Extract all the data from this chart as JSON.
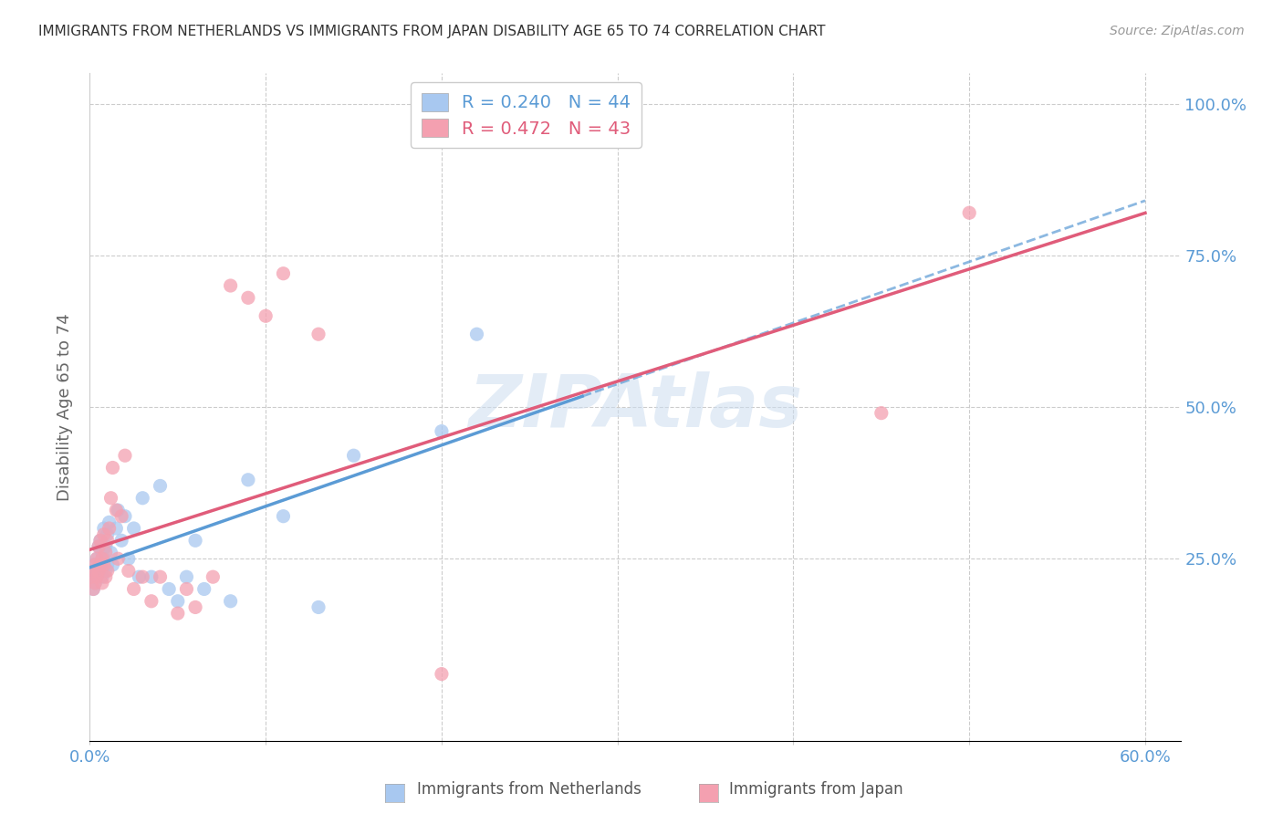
{
  "title": "IMMIGRANTS FROM NETHERLANDS VS IMMIGRANTS FROM JAPAN DISABILITY AGE 65 TO 74 CORRELATION CHART",
  "source": "Source: ZipAtlas.com",
  "ylabel": "Disability Age 65 to 74",
  "xlim": [
    0.0,
    0.62
  ],
  "ylim": [
    -0.05,
    1.05
  ],
  "netherlands_R": 0.24,
  "netherlands_N": 44,
  "japan_R": 0.472,
  "japan_N": 43,
  "netherlands_color": "#A8C8F0",
  "japan_color": "#F4A0B0",
  "netherlands_scatter_x": [
    0.001,
    0.002,
    0.002,
    0.003,
    0.003,
    0.004,
    0.004,
    0.005,
    0.005,
    0.006,
    0.006,
    0.007,
    0.007,
    0.008,
    0.008,
    0.009,
    0.009,
    0.01,
    0.01,
    0.011,
    0.012,
    0.013,
    0.015,
    0.016,
    0.018,
    0.02,
    0.022,
    0.025,
    0.028,
    0.03,
    0.035,
    0.04,
    0.045,
    0.05,
    0.055,
    0.06,
    0.065,
    0.08,
    0.09,
    0.11,
    0.13,
    0.15,
    0.2,
    0.22
  ],
  "netherlands_scatter_y": [
    0.22,
    0.24,
    0.2,
    0.23,
    0.21,
    0.25,
    0.22,
    0.27,
    0.23,
    0.28,
    0.24,
    0.26,
    0.22,
    0.3,
    0.25,
    0.27,
    0.23,
    0.29,
    0.24,
    0.31,
    0.26,
    0.24,
    0.3,
    0.33,
    0.28,
    0.32,
    0.25,
    0.3,
    0.22,
    0.35,
    0.22,
    0.37,
    0.2,
    0.18,
    0.22,
    0.28,
    0.2,
    0.18,
    0.38,
    0.32,
    0.17,
    0.42,
    0.46,
    0.62
  ],
  "japan_scatter_x": [
    0.001,
    0.002,
    0.002,
    0.003,
    0.003,
    0.004,
    0.004,
    0.005,
    0.005,
    0.006,
    0.006,
    0.007,
    0.007,
    0.008,
    0.008,
    0.009,
    0.009,
    0.01,
    0.01,
    0.011,
    0.012,
    0.013,
    0.015,
    0.016,
    0.018,
    0.02,
    0.022,
    0.025,
    0.03,
    0.035,
    0.04,
    0.05,
    0.055,
    0.06,
    0.07,
    0.08,
    0.09,
    0.1,
    0.11,
    0.13,
    0.2,
    0.45,
    0.5
  ],
  "japan_scatter_y": [
    0.22,
    0.23,
    0.2,
    0.24,
    0.21,
    0.25,
    0.22,
    0.27,
    0.23,
    0.28,
    0.24,
    0.25,
    0.21,
    0.29,
    0.24,
    0.26,
    0.22,
    0.28,
    0.23,
    0.3,
    0.35,
    0.4,
    0.33,
    0.25,
    0.32,
    0.42,
    0.23,
    0.2,
    0.22,
    0.18,
    0.22,
    0.16,
    0.2,
    0.17,
    0.22,
    0.7,
    0.68,
    0.65,
    0.72,
    0.62,
    0.06,
    0.49,
    0.82
  ],
  "netherlands_line_color": "#5B9BD5",
  "japan_line_color": "#E05C7A",
  "watermark_text": "ZIPAtlas",
  "background_color": "#ffffff",
  "grid_color": "#cccccc",
  "title_color": "#333333",
  "tick_label_color": "#5B9BD5",
  "ylabel_color": "#666666",
  "source_color": "#999999"
}
